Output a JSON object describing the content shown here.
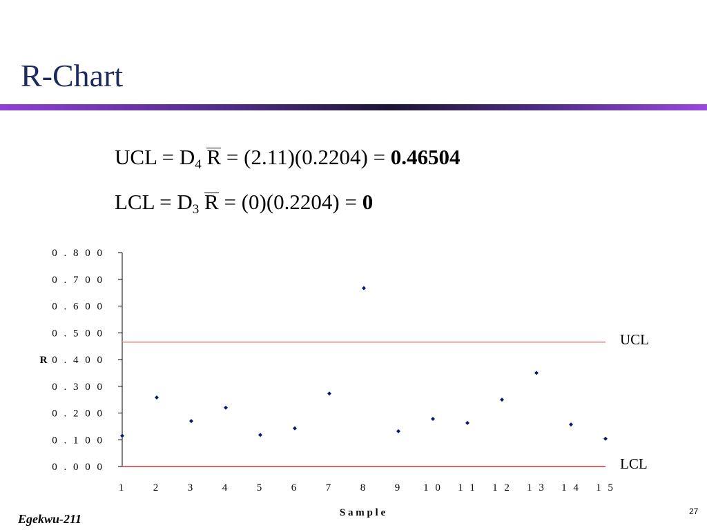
{
  "slide": {
    "title": "R-Chart",
    "footer_author": "Egekwu-211",
    "page_number": "27"
  },
  "formulas": {
    "ucl": {
      "lhs": "UCL",
      "eq1": "=",
      "d": "D",
      "d_sub": "4",
      "rbar": "R",
      "eq2": "=",
      "expr": "(2.11)(0.2204)",
      "eq3": "=",
      "result": "0.46504"
    },
    "lcl": {
      "lhs": "LCL",
      "eq1": "=",
      "d": "D",
      "d_sub": "3",
      "rbar": "R",
      "eq2": "=",
      "expr": "(0)(0.2204)",
      "eq3": "=",
      "result": "0"
    }
  },
  "chart_data": {
    "type": "scatter",
    "title": "",
    "xlabel": "S a m p l e",
    "ylabel": "R",
    "x_tick_labels": [
      "1",
      "2",
      "3",
      "4",
      "5",
      "6",
      "7",
      "8",
      "9",
      "1 0",
      "1 1",
      "1 2",
      "1 3",
      "1 4",
      "1 5"
    ],
    "y_tick_labels": [
      "0 . 0 0 0",
      "0 . 1 0 0",
      "0 . 2 0 0",
      "0 . 3 0 0",
      "0 . 4 0 0",
      "0 . 5 0 0",
      "0 . 6 0 0",
      "0 . 7 0 0",
      "0 . 8 0 0"
    ],
    "ylim": [
      0,
      0.8
    ],
    "xlim": [
      1,
      15
    ],
    "grid": false,
    "series": [
      {
        "values": [
          0.115,
          0.258,
          0.17,
          0.22,
          0.118,
          0.143,
          0.273,
          0.667,
          0.132,
          0.178,
          0.163,
          0.25,
          0.35,
          0.157,
          0.104
        ],
        "color": "#0a1a6e"
      }
    ],
    "limits": [
      {
        "label": "UCL",
        "value": 0.46504,
        "color": "#e8827e"
      },
      {
        "label": "LCL",
        "value": 0,
        "color": "#d83030"
      }
    ]
  }
}
